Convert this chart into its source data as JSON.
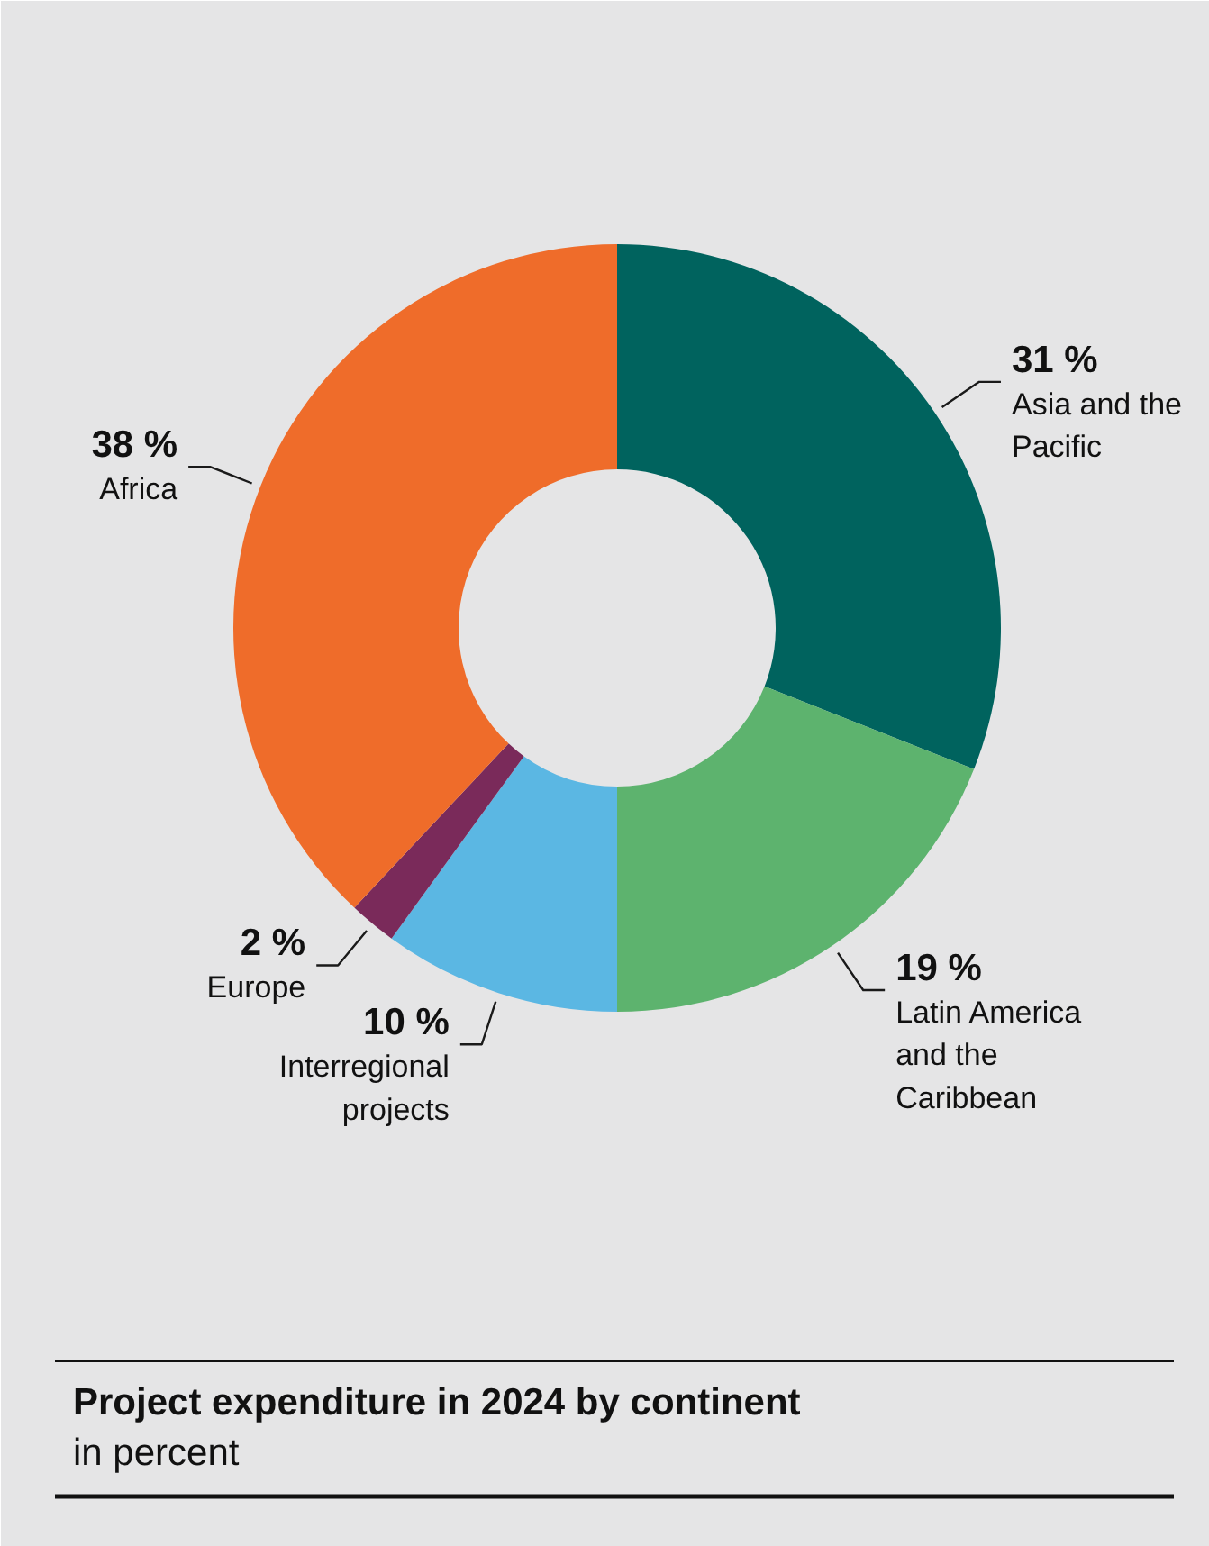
{
  "chart_data": {
    "type": "donut",
    "title": "Project expenditure in 2024 by continent",
    "subtitle": "in percent",
    "categories": [
      "Asia and the Pacific",
      "Latin America and the Caribbean",
      "Interregional projects",
      "Europe",
      "Africa"
    ],
    "values": [
      31,
      19,
      10,
      2,
      38
    ],
    "value_labels": [
      "31 %",
      "19 %",
      "10 %",
      "2 %",
      "38 %"
    ],
    "colors": [
      "#00635e",
      "#5db36e",
      "#5bb7e3",
      "#7a2a5a",
      "#ef6c2a"
    ]
  }
}
